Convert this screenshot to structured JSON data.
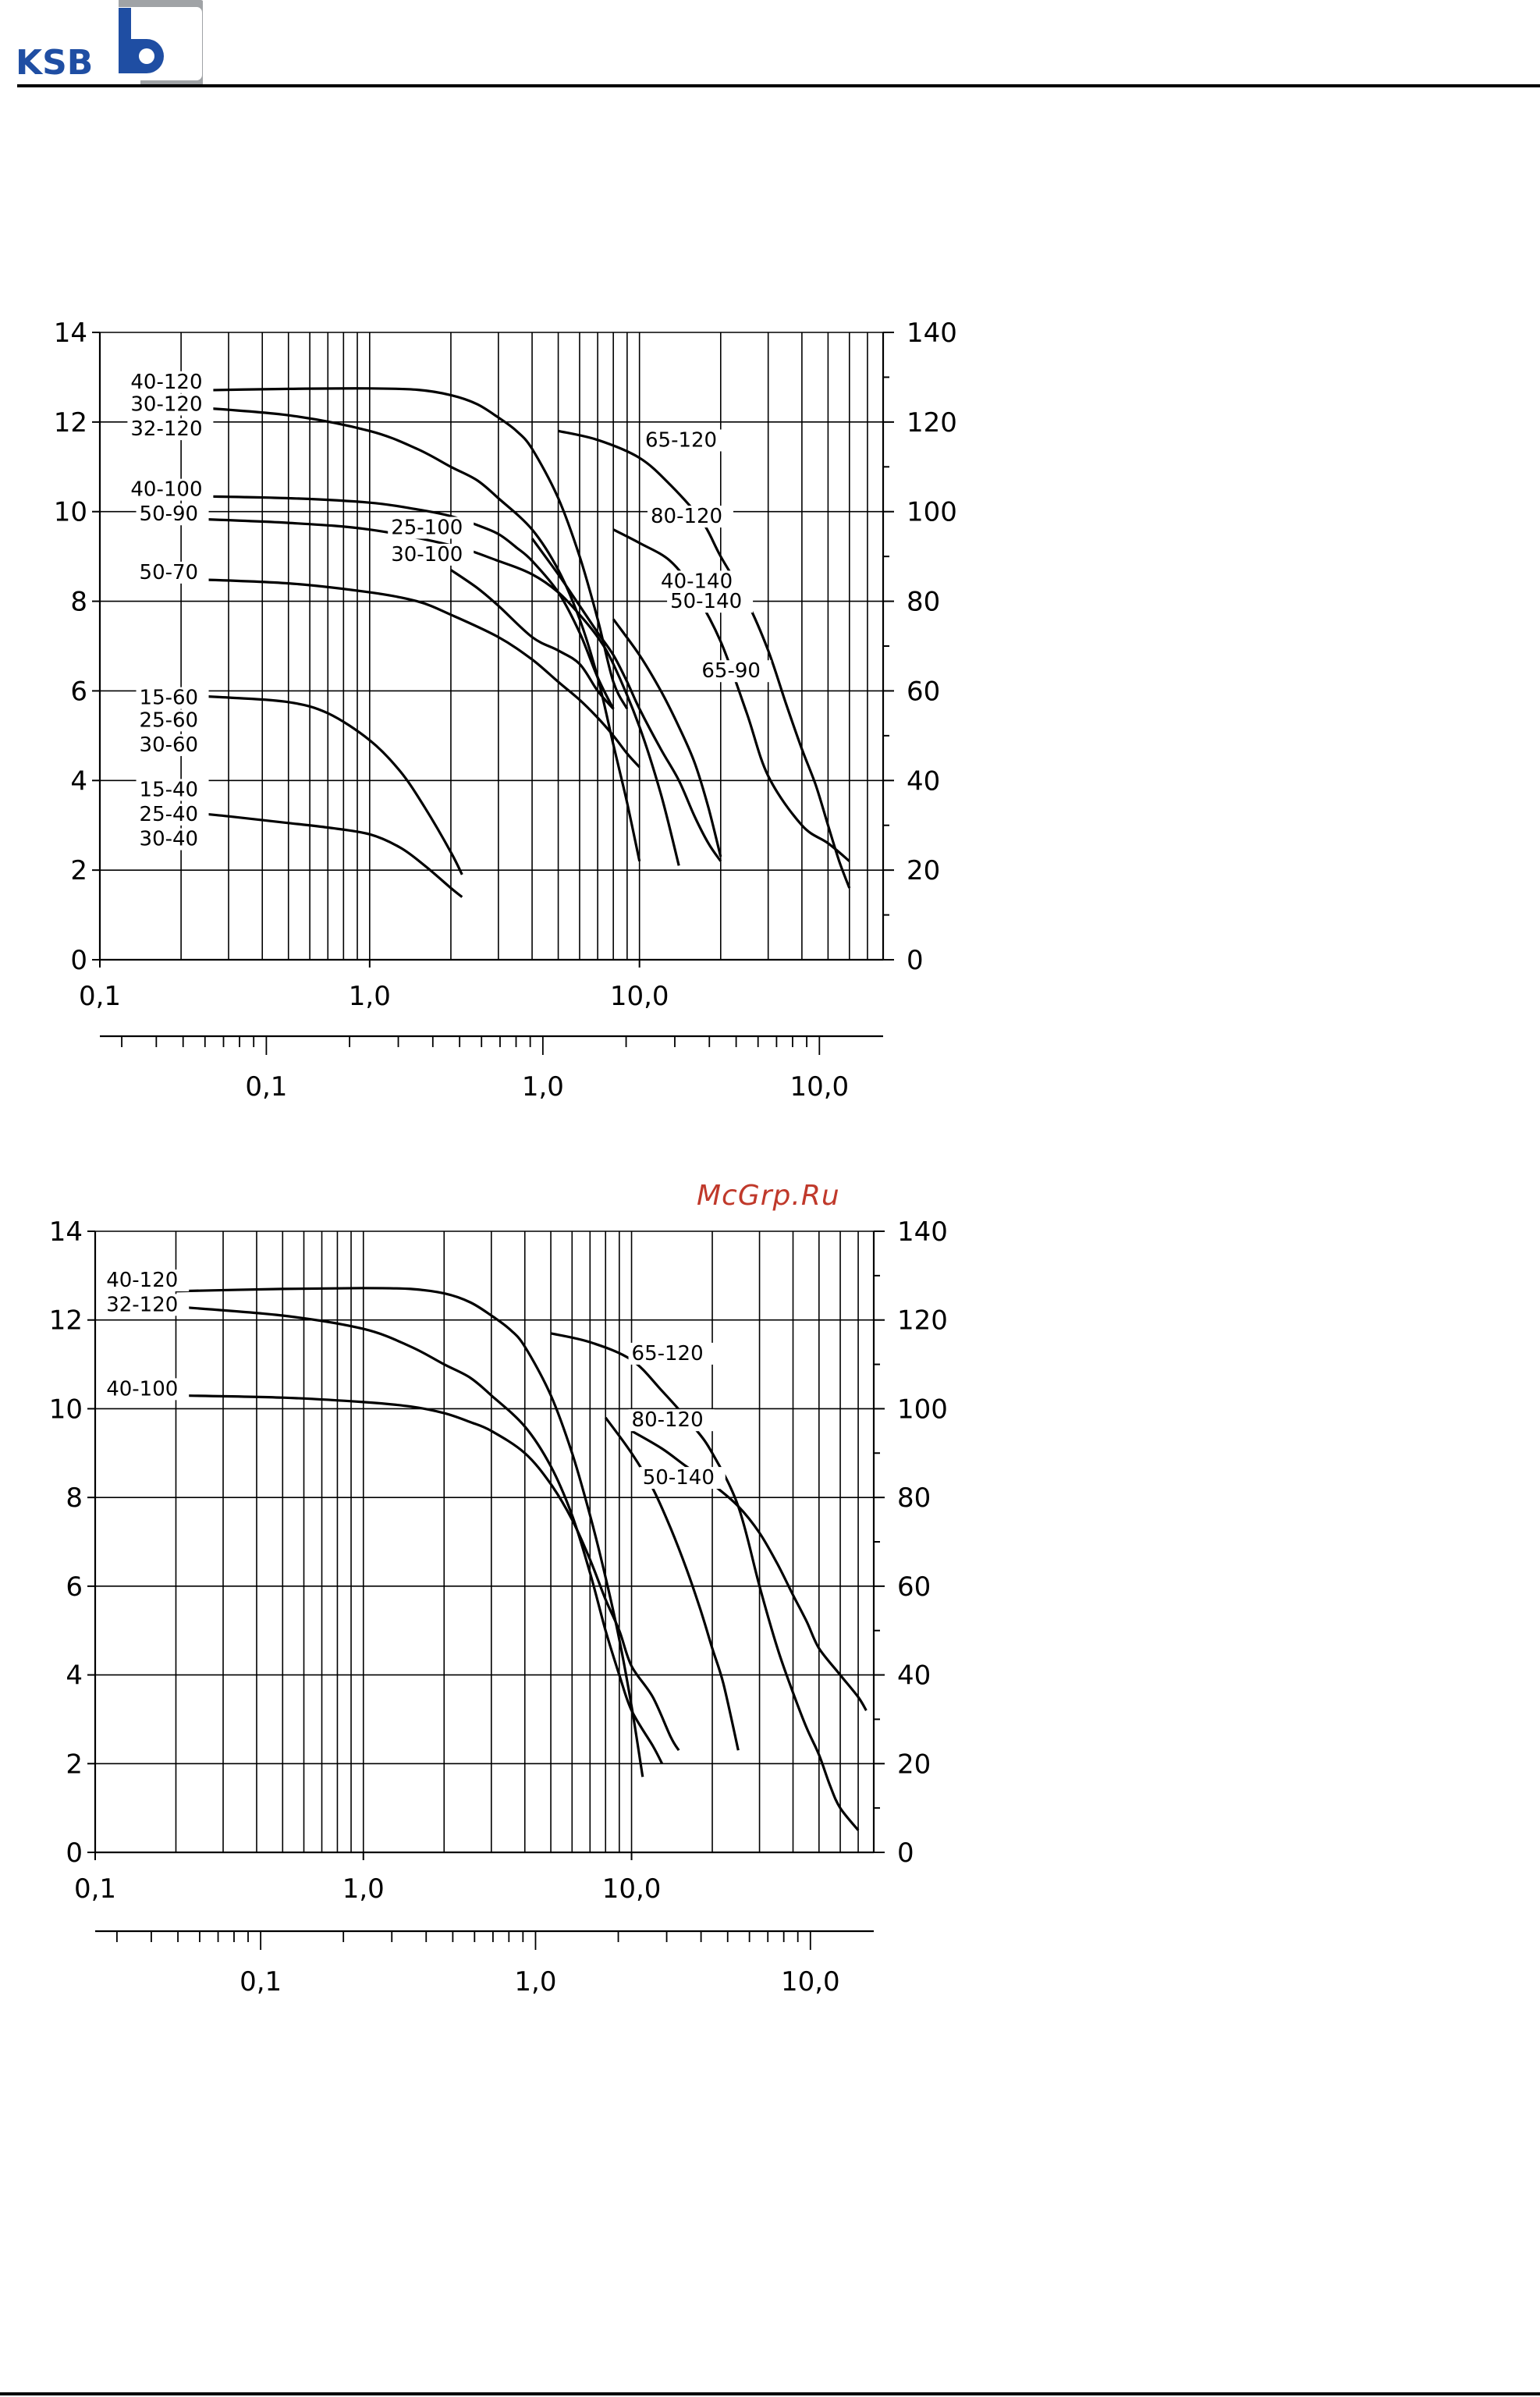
{
  "brand": {
    "name": "KSB",
    "logo_icon": "ksb-b-logo-icon"
  },
  "watermark": "McGrp.Ru",
  "colors": {
    "ink": "#000000",
    "watermark": "#c0392b",
    "logo_gray": "#a0a3a6"
  },
  "chart_data": [
    {
      "type": "line",
      "title": "",
      "xscale": "log",
      "xlim": [
        0.1,
        80
      ],
      "ylim": [
        0,
        14
      ],
      "y_ticks": [
        "0",
        "2",
        "4",
        "6",
        "8",
        "10",
        "12",
        "14"
      ],
      "y2_ticks": [
        "0",
        "20",
        "40",
        "60",
        "80",
        "100",
        "120",
        "140"
      ],
      "x_ticks": [
        {
          "v": 0.1,
          "label": "0,1"
        },
        {
          "v": 1,
          "label": "1,0"
        },
        {
          "v": 10,
          "label": "10,0"
        }
      ],
      "x2_ticks": [
        {
          "v": 0.1,
          "label": "0,1"
        },
        {
          "v": 1,
          "label": "1,0"
        },
        {
          "v": 10,
          "label": "10,0"
        }
      ],
      "series": [
        {
          "name": "40-120",
          "x": [
            0.2,
            0.5,
            1,
            1.5,
            2,
            2.5,
            3,
            3.5,
            4,
            5,
            6,
            7,
            8,
            9
          ],
          "y": [
            12.7,
            12.74,
            12.75,
            12.72,
            12.6,
            12.4,
            12.1,
            11.8,
            11.4,
            10.3,
            9.0,
            7.6,
            6.2,
            5.6
          ]
        },
        {
          "name": "30-120/32-120",
          "x": [
            0.2,
            0.5,
            1,
            1.5,
            2,
            2.5,
            3,
            4,
            5,
            6,
            7,
            8,
            9,
            10
          ],
          "y": [
            12.35,
            12.15,
            11.8,
            11.4,
            11.0,
            10.7,
            10.3,
            9.6,
            8.7,
            7.6,
            6.3,
            4.8,
            3.5,
            2.2
          ]
        },
        {
          "name": "40-100",
          "x": [
            0.2,
            0.5,
            1,
            1.5,
            2,
            2.5,
            3,
            3.5,
            4,
            5,
            6,
            7,
            8
          ],
          "y": [
            10.35,
            10.3,
            10.2,
            10.05,
            9.9,
            9.7,
            9.5,
            9.2,
            8.9,
            8.2,
            7.3,
            6.3,
            5.6
          ]
        },
        {
          "name": "50-90",
          "x": [
            0.2,
            0.5,
            1,
            2,
            3,
            4,
            5,
            6,
            7,
            8,
            10,
            12,
            14
          ],
          "y": [
            9.85,
            9.75,
            9.6,
            9.25,
            8.9,
            8.6,
            8.2,
            7.7,
            7.2,
            6.6,
            5.2,
            3.7,
            2.1
          ]
        },
        {
          "name": "50-70",
          "x": [
            0.2,
            0.5,
            1,
            1.5,
            2,
            3,
            4,
            5,
            6,
            7,
            8,
            9,
            10
          ],
          "y": [
            8.5,
            8.4,
            8.2,
            8.0,
            7.7,
            7.2,
            6.7,
            6.2,
            5.8,
            5.4,
            5.0,
            4.6,
            4.3
          ]
        },
        {
          "name": "25-100/30-100",
          "x": [
            2,
            2.5,
            3,
            4,
            5,
            6,
            7,
            8
          ],
          "y": [
            8.7,
            8.3,
            7.9,
            7.2,
            6.9,
            6.6,
            6.0,
            5.6
          ]
        },
        {
          "name": "65-120",
          "x": [
            5,
            7,
            10,
            13,
            17,
            20,
            25,
            30,
            35,
            40,
            45,
            50,
            55,
            60
          ],
          "y": [
            11.8,
            11.6,
            11.2,
            10.6,
            9.8,
            9.0,
            8.0,
            6.9,
            5.7,
            4.7,
            3.9,
            3.0,
            2.2,
            1.6
          ]
        },
        {
          "name": "80-120",
          "x": [
            8,
            10,
            13,
            16,
            20,
            25,
            30,
            40,
            50,
            60
          ],
          "y": [
            9.6,
            9.3,
            8.9,
            8.2,
            7.1,
            5.5,
            4.1,
            3.0,
            2.6,
            2.2
          ]
        },
        {
          "name": "40-140/50-140",
          "x": [
            4,
            5,
            6,
            7,
            8,
            9,
            10,
            12,
            14,
            16,
            18,
            20
          ],
          "y": [
            9.4,
            8.6,
            7.9,
            7.3,
            6.8,
            6.2,
            5.6,
            4.7,
            4.0,
            3.2,
            2.6,
            2.2
          ]
        },
        {
          "name": "65-90",
          "x": [
            8,
            10,
            12,
            14,
            16,
            18,
            20
          ],
          "y": [
            7.6,
            6.8,
            6.0,
            5.2,
            4.4,
            3.4,
            2.3
          ]
        },
        {
          "name": "15-60/25-60/30-60",
          "x": [
            0.2,
            0.3,
            0.5,
            0.7,
            1,
            1.3,
            1.6,
            2,
            2.2
          ],
          "y": [
            5.9,
            5.85,
            5.75,
            5.5,
            4.9,
            4.2,
            3.4,
            2.4,
            1.9
          ]
        },
        {
          "name": "15-40/25-40/30-40",
          "x": [
            0.2,
            0.3,
            0.5,
            0.7,
            1,
            1.3,
            1.6,
            2,
            2.2
          ],
          "y": [
            3.3,
            3.2,
            3.05,
            2.95,
            2.8,
            2.5,
            2.1,
            1.6,
            1.4
          ]
        }
      ],
      "labels": [
        {
          "text": "40-120",
          "x": 0.13,
          "y": 12.75
        },
        {
          "text": "30-120",
          "x": 0.13,
          "y": 12.25
        },
        {
          "text": "32-120",
          "x": 0.13,
          "y": 11.7
        },
        {
          "text": "40-100",
          "x": 0.13,
          "y": 10.35
        },
        {
          "text": "50-90",
          "x": 0.14,
          "y": 9.8
        },
        {
          "text": "50-70",
          "x": 0.14,
          "y": 8.5
        },
        {
          "text": "25-100",
          "x": 1.2,
          "y": 9.5
        },
        {
          "text": "30-100",
          "x": 1.2,
          "y": 8.9
        },
        {
          "text": "65-120",
          "x": 10.5,
          "y": 11.45
        },
        {
          "text": "80-120",
          "x": 11,
          "y": 9.75
        },
        {
          "text": "40-140",
          "x": 12,
          "y": 8.3
        },
        {
          "text": "50-140",
          "x": 13,
          "y": 7.85
        },
        {
          "text": "65-90",
          "x": 17,
          "y": 6.3
        },
        {
          "text": "15-60",
          "x": 0.14,
          "y": 5.7
        },
        {
          "text": "25-60",
          "x": 0.14,
          "y": 5.2
        },
        {
          "text": "30-60",
          "x": 0.14,
          "y": 4.65
        },
        {
          "text": "15-40",
          "x": 0.14,
          "y": 3.65
        },
        {
          "text": "25-40",
          "x": 0.14,
          "y": 3.1
        },
        {
          "text": "30-40",
          "x": 0.14,
          "y": 2.55
        }
      ]
    },
    {
      "type": "line",
      "title": "",
      "xscale": "log",
      "xlim": [
        0.1,
        80
      ],
      "ylim": [
        0,
        14
      ],
      "y_ticks": [
        "0",
        "2",
        "4",
        "6",
        "8",
        "10",
        "12",
        "14"
      ],
      "y2_ticks": [
        "0",
        "20",
        "40",
        "60",
        "80",
        "100",
        "120",
        "140"
      ],
      "x_ticks": [
        {
          "v": 0.1,
          "label": "0,1"
        },
        {
          "v": 1,
          "label": "1,0"
        },
        {
          "v": 10,
          "label": "10,0"
        }
      ],
      "x2_ticks": [
        {
          "v": 0.1,
          "label": "0,1"
        },
        {
          "v": 1,
          "label": "1,0"
        },
        {
          "v": 10,
          "label": "10,0"
        }
      ],
      "series": [
        {
          "name": "40-120",
          "x": [
            0.2,
            0.5,
            1,
            1.5,
            2,
            2.5,
            3,
            3.5,
            4,
            5,
            6,
            7,
            8,
            9,
            10,
            11
          ],
          "y": [
            12.65,
            12.7,
            12.72,
            12.7,
            12.6,
            12.4,
            12.1,
            11.8,
            11.4,
            10.3,
            9.0,
            7.6,
            6.2,
            4.8,
            3.3,
            1.7
          ]
        },
        {
          "name": "32-120",
          "x": [
            0.2,
            0.5,
            1,
            1.5,
            2,
            2.5,
            3,
            4,
            5,
            6,
            7,
            8,
            9,
            10,
            12,
            13
          ],
          "y": [
            12.3,
            12.1,
            11.8,
            11.4,
            11.0,
            10.7,
            10.3,
            9.6,
            8.7,
            7.6,
            6.3,
            5.0,
            4.0,
            3.2,
            2.4,
            2.0
          ]
        },
        {
          "name": "40-100",
          "x": [
            0.2,
            0.5,
            1,
            1.5,
            2,
            2.5,
            3,
            4,
            5,
            6,
            7,
            8,
            9,
            10,
            12,
            14,
            15
          ],
          "y": [
            10.3,
            10.25,
            10.15,
            10.05,
            9.9,
            9.7,
            9.5,
            9.0,
            8.3,
            7.5,
            6.6,
            5.7,
            5.0,
            4.2,
            3.5,
            2.6,
            2.3
          ]
        },
        {
          "name": "65-120",
          "x": [
            5,
            7,
            10,
            13,
            17,
            20,
            25,
            30,
            35,
            40,
            45,
            50,
            55,
            60,
            70
          ],
          "y": [
            11.7,
            11.5,
            11.1,
            10.4,
            9.6,
            9.0,
            7.8,
            6.0,
            4.6,
            3.6,
            2.8,
            2.2,
            1.5,
            1.0,
            0.5
          ]
        },
        {
          "name": "80-120",
          "x": [
            8,
            10,
            12,
            14,
            16,
            18,
            20,
            22,
            25
          ],
          "y": [
            9.8,
            9.0,
            8.2,
            7.3,
            6.4,
            5.5,
            4.6,
            3.8,
            2.3
          ]
        },
        {
          "name": "50-140",
          "x": [
            10,
            13,
            16,
            20,
            25,
            30,
            35,
            40,
            45,
            50,
            60,
            70,
            75
          ],
          "y": [
            9.5,
            9.1,
            8.7,
            8.3,
            7.8,
            7.2,
            6.5,
            5.8,
            5.2,
            4.6,
            4.0,
            3.5,
            3.2
          ]
        }
      ],
      "labels": [
        {
          "text": "40-120",
          "x": 0.11,
          "y": 12.75
        },
        {
          "text": "32-120",
          "x": 0.11,
          "y": 12.2
        },
        {
          "text": "40-100",
          "x": 0.11,
          "y": 10.3
        },
        {
          "text": "65-120",
          "x": 10,
          "y": 11.1
        },
        {
          "text": "80-120",
          "x": 10,
          "y": 9.6
        },
        {
          "text": "50-140",
          "x": 11,
          "y": 8.3
        }
      ]
    }
  ]
}
